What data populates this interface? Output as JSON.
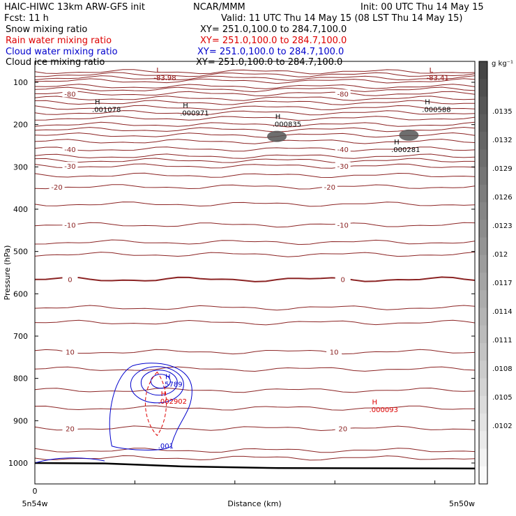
{
  "header": {
    "title_left": "HAIC-HIWC 13km ARW-GFS init",
    "title_center": "NCAR/MMM",
    "init": "Init: 00 UTC Thu 14 May 15",
    "fcst": "Fcst:     11 h",
    "valid": "Valid: 11 UTC Thu 14 May 15 (08 LST Thu 14 May 15)",
    "fields": [
      {
        "name": "Snow mixing ratio",
        "xy": "XY= 251.0,100.0 to 284.7,100.0",
        "color": "#000000"
      },
      {
        "name": "Rain water mixing ratio",
        "xy": "XY= 251.0,100.0 to 284.7,100.0",
        "color": "#dd0000"
      },
      {
        "name": "Cloud water mixing ratio",
        "xy": "XY= 251.0,100.0 to 284.7,100.0",
        "color": "#0000cc"
      },
      {
        "name": "Cloud ice mixing ratio",
        "xy": "XY= 251.0,100.0 to 284.7,100.0",
        "color": "#000000"
      }
    ]
  },
  "chart_data": {
    "type": "cross-section contour",
    "ylabel": "Pressure (hPa)",
    "xlabel": "Distance (km)",
    "x_start_label": "0",
    "x_left_label": "5n54w",
    "x_right_label": "5n50w",
    "ylim": [
      1050,
      50
    ],
    "y_ticks": [
      100,
      200,
      300,
      400,
      500,
      600,
      700,
      800,
      900,
      1000
    ],
    "temperature_contours": [
      {
        "value": -80,
        "pressure": 127,
        "label": "-80",
        "label_positions": [
          0.08,
          0.7
        ]
      },
      {
        "value": -40,
        "pressure": 258,
        "label": "-40",
        "label_positions": [
          0.08,
          0.7
        ]
      },
      {
        "value": -30,
        "pressure": 298,
        "label": "-30",
        "label_positions": [
          0.08,
          0.7
        ]
      },
      {
        "value": -20,
        "pressure": 347,
        "label": "-20",
        "label_positions": [
          0.05,
          0.67
        ]
      },
      {
        "value": -10,
        "pressure": 437,
        "label": "-10",
        "label_positions": [
          0.08,
          0.7
        ]
      },
      {
        "value": 0,
        "pressure": 566,
        "label": "0",
        "label_positions": [
          0.08,
          0.7
        ]
      },
      {
        "value": 10,
        "pressure": 737,
        "label": "10",
        "label_positions": [
          0.08,
          0.68
        ]
      },
      {
        "value": 20,
        "pressure": 918,
        "label": "20",
        "label_positions": [
          0.08,
          0.7
        ]
      }
    ],
    "unlabeled_contour_pressures": [
      75,
      82,
      90,
      97,
      110,
      117,
      138,
      148,
      160,
      172,
      185,
      200,
      212,
      225,
      240,
      275,
      285,
      320,
      388,
      478,
      507,
      633,
      668,
      778,
      828,
      870,
      970,
      988
    ],
    "extrema": [
      {
        "type": "L",
        "value": "-83.98",
        "x": 0.27,
        "p": 85,
        "color": "#8b0000"
      },
      {
        "type": "L",
        "value": "-83.41",
        "x": 0.89,
        "p": 85,
        "color": "#8b0000"
      },
      {
        "type": "H",
        "value": ".001078",
        "x": 0.13,
        "p": 160,
        "color": "#000000"
      },
      {
        "type": "H",
        "value": ".000971",
        "x": 0.33,
        "p": 168,
        "color": "#000000"
      },
      {
        "type": "H",
        "value": ".000835",
        "x": 0.54,
        "p": 195,
        "color": "#000000"
      },
      {
        "type": "H",
        "value": ".000588",
        "x": 0.88,
        "p": 160,
        "color": "#000000"
      },
      {
        "type": "H",
        "value": ".000281",
        "x": 0.81,
        "p": 255,
        "color": "#000000"
      },
      {
        "type": "H",
        "value": ".5789",
        "x": 0.29,
        "p": 810,
        "color": "#0000cc"
      },
      {
        "type": "H",
        "value": ".002902",
        "x": 0.28,
        "p": 850,
        "color": "#dd0000"
      },
      {
        "type": "H",
        "value": ".000093",
        "x": 0.76,
        "p": 870,
        "color": "#dd0000"
      }
    ],
    "cloud_water_labels": [
      {
        "value": ".001",
        "x": 0.28,
        "p": 965
      }
    ],
    "snow_patches": [
      {
        "x": 0.55,
        "p": 228
      },
      {
        "x": 0.85,
        "p": 225
      }
    ],
    "colorbar": {
      "unit": "g kg⁻¹",
      "labels": [
        ".0135",
        ".0132",
        ".0129",
        ".0126",
        ".0123",
        ".012",
        ".0117",
        ".0114",
        ".0111",
        ".0108",
        ".0105",
        ".0102"
      ]
    },
    "colors": {
      "temperature": "#8b2323",
      "cloud_water": "#0000cc",
      "rain_water": "#dd0000",
      "terrain": "#000000"
    }
  }
}
